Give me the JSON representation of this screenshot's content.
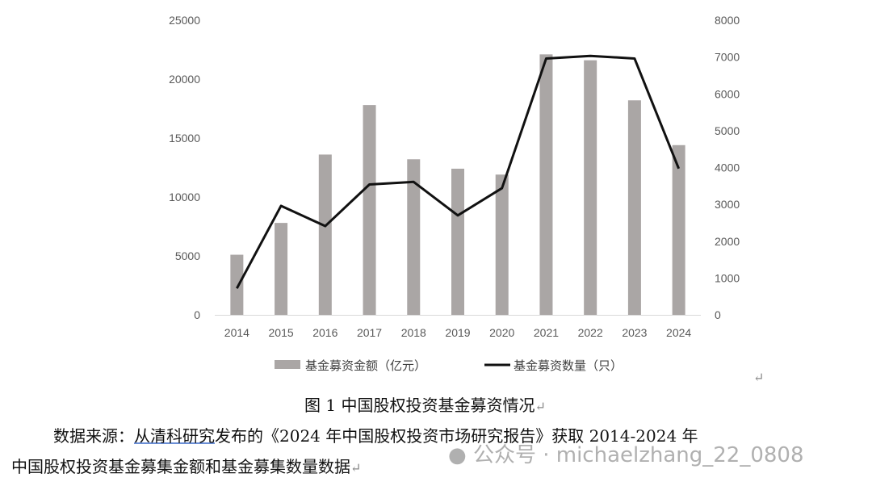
{
  "chart_data": {
    "type": "bar+line",
    "categories": [
      "2014",
      "2015",
      "2016",
      "2017",
      "2018",
      "2019",
      "2020",
      "2021",
      "2022",
      "2023",
      "2024"
    ],
    "series": [
      {
        "name": "基金募资金额（亿元）",
        "type": "bar",
        "axis": "left",
        "color": "#aaa6a5",
        "values": [
          5100,
          7800,
          13600,
          17800,
          13200,
          12400,
          11900,
          22100,
          21600,
          18200,
          14400
        ]
      },
      {
        "name": "基金募资数量（只）",
        "type": "line",
        "axis": "right",
        "color": "#111111",
        "values": [
          720,
          2960,
          2410,
          3540,
          3610,
          2700,
          3440,
          6960,
          7030,
          6960,
          3970
        ]
      }
    ],
    "y_left": {
      "range": [
        0,
        25000
      ],
      "ticks": [
        "0",
        "5000",
        "10000",
        "15000",
        "20000",
        "25000"
      ]
    },
    "y_right": {
      "range": [
        0,
        8000
      ],
      "ticks": [
        "0",
        "1000",
        "2000",
        "3000",
        "4000",
        "5000",
        "6000",
        "7000",
        "8000"
      ]
    },
    "legend_position": "bottom",
    "grid": false
  },
  "doc": {
    "return_mark": "↵",
    "caption": "图 1  中国股权投资基金募资情况",
    "source_line1_prefix": "数据来源：",
    "source_link": "从清科研究",
    "source_line1_rest": "发布的《2024 年中国股权投资市场研究报告》获取 2014-2024 年",
    "source_line2": "中国股权投资基金募集金额和基金募集数量数据",
    "watermark": "公众号 · michaelzhang_22_0808"
  }
}
